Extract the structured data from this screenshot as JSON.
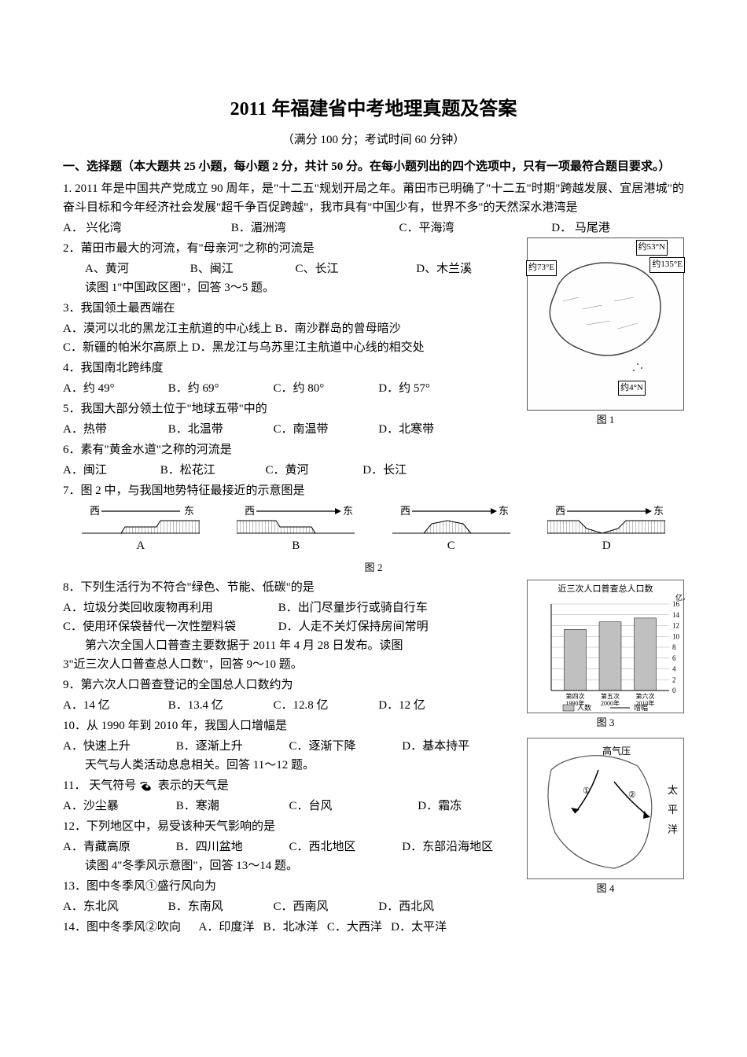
{
  "title": "2011 年福建省中考地理真题及答案",
  "subtitle": "（满分 100 分；考试时间 60 分钟）",
  "section1_header": "一、选择题（本大题共 25 小题，每小题 2 分，共计 50 分。在每小题列出的四个选项中，只有一项最符合题目要求。）",
  "q1": {
    "text": "1. 2011 年是中国共产党成立 90 周年，是\"十二五\"规划开局之年。莆田市已明确了\"十二五\"时期\"跨越发展、宜居港城\"的奋斗目标和今年经济社会发展\"超千争百促跨越\"，我市具有\"中国少有，世界不多\"的天然深水港湾是",
    "a": "A．  兴化湾",
    "b": "B．湄洲湾",
    "c": "C．平海湾",
    "d": "D． 马尾港"
  },
  "q2": {
    "text": "2．莆田市最大的河流，有\"母亲河\"之称的河流是",
    "a": "A、黄河",
    "b": "B、闽江",
    "c": "C、长江",
    "d": "D、木兰溪",
    "note": "读图 1\"中国政区图\"，回答 3～5 题。"
  },
  "q3": {
    "text": "3．我国领土最西端在",
    "a": "A．漠河以北的黑龙江主航道的中心线上 B．南沙群岛的曾母暗沙",
    "c": "C．新疆的帕米尔高原上 D．黑龙江与乌苏里江主航道中心线的相交处"
  },
  "q4": {
    "text": "4．我国南北跨纬度",
    "a": "A．约 49°",
    "b": "B．约 69°",
    "c": "C．约 80°",
    "d": "D．约 57°"
  },
  "q5": {
    "text": "5．我国大部分领土位于\"地球五带\"中的",
    "a": "A．热带",
    "b": "B．北温带",
    "c": "C．南温带",
    "d": "D．北寒带"
  },
  "q6": {
    "text": "6．素有\"黄金水道\"之称的河流是",
    "a": "A．闽江",
    "b": "B．松花江",
    "c": "C．黄河",
    "d": "D．长江"
  },
  "q7": {
    "text": "7．图 2 中，与我国地势特征最接近的示意图是"
  },
  "fig1": {
    "label_53n": "约53°N",
    "label_73e": "约73°E",
    "label_135e": "约135°E",
    "label_4n": "约4°N",
    "caption": "图 1"
  },
  "fig2": {
    "west": "西",
    "east": "东",
    "labels": [
      "A",
      "B",
      "C",
      "D"
    ],
    "caption": "图 2"
  },
  "q8": {
    "text": "8．下列生活行为不符合\"绿色、节能、低碳\"的是",
    "a": "A．垃圾分类回收废物再利用",
    "b": "B．出门尽量步行或骑自行车",
    "c": "C．使用环保袋替代一次性塑料袋",
    "d": "D．人走不关灯保持房间常明",
    "note": "第六次全国人口普查主要数据于 2011 年 4 月 28 日发布。读图"
  },
  "q8_cont": "3\"近三次人口普查总人口数\"，回答 9～10 题。",
  "q9": {
    "text": "9．第六次人口普查登记的全国总人口数约为",
    "a": "A．14 亿",
    "b": "B．13.4 亿",
    "c": "C．12.8 亿",
    "d": "D．12 亿"
  },
  "q10": {
    "text": "10．从 1990 年到 2010 年，我国人口增幅是",
    "a": "A．快速上升",
    "b": "B．逐渐上升",
    "c": "C．逐渐下降",
    "d": "D．基本持平",
    "note": "天气与人类活动息息相关。回答 11～12 题。"
  },
  "q11": {
    "text_prefix": "11． 天气符号",
    "text_suffix": "表示的天气是",
    "a": "A．沙尘暴",
    "b": "B．寒潮",
    "c": "C．台风",
    "d": "D．霜冻"
  },
  "q12": {
    "text": "12．下列地区中，易受该种天气影响的是",
    "a": "A．青藏高原",
    "b": "B．四川盆地",
    "c": "C．西北地区",
    "d": "D．东部沿海地区",
    "note": "读图 4\"冬季风示意图\"，回答 13～14 题。"
  },
  "q13": {
    "text": "13．图中冬季风①盛行风向为",
    "a": "A．东北风",
    "b": "B．东南风",
    "c": "C．西南风",
    "d": "D．西北风"
  },
  "q14": {
    "text": "14．图中冬季风②吹向",
    "a": "A．印度洋",
    "b": "B．北冰洋",
    "c": "C．大西洋",
    "d": "D．太平洋"
  },
  "fig3": {
    "title": "近三次人口普查总人口数",
    "ylabel": "亿人",
    "yticks": [
      "0",
      "2",
      "4",
      "6",
      "8",
      "10",
      "12",
      "14",
      "16"
    ],
    "categories": [
      "第四次\n1990年",
      "第五次\n2000年",
      "第六次\n2010年"
    ],
    "values": [
      11.3,
      12.7,
      13.4
    ],
    "bar_color": "#c0c0c0",
    "legend_bar": "人数",
    "legend_line": "增幅",
    "caption": "图 3"
  },
  "fig4": {
    "labels": {
      "high": "高气压",
      "pacific_v": "太平洋"
    },
    "caption": "图 4"
  }
}
